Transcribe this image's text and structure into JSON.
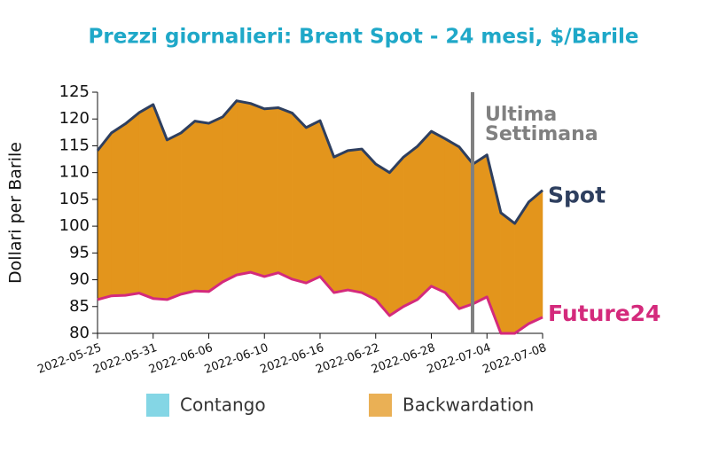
{
  "chart_data": {
    "type": "line",
    "title": "Prezzi giornalieri: Brent Spot - 24 mesi, $/Barile",
    "y_label": "Dollari per Barile",
    "categories": [
      "2022-05-25",
      null,
      null,
      null,
      "2022-05-31",
      null,
      null,
      null,
      "2022-06-06",
      null,
      null,
      null,
      "2022-06-10",
      null,
      null,
      null,
      "2022-06-16",
      null,
      null,
      null,
      "2022-06-22",
      null,
      null,
      null,
      "2022-06-28",
      null,
      null,
      null,
      "2022-07-04",
      null,
      null,
      null,
      "2022-07-08"
    ],
    "series": [
      {
        "name": "Spot",
        "color": "#2e3f5f",
        "values": [
          114.1,
          117.4,
          119.1,
          121.2,
          122.7,
          116.1,
          117.4,
          119.6,
          119.2,
          120.4,
          123.4,
          122.9,
          121.9,
          122.1,
          121.1,
          118.4,
          119.7,
          112.9,
          114.1,
          114.4,
          111.6,
          110.0,
          112.9,
          114.9,
          117.7,
          116.3,
          114.8,
          111.6,
          113.3,
          102.5,
          100.5,
          104.5,
          106.7
        ]
      },
      {
        "name": "Future24",
        "color": "#d42a7c",
        "values": [
          86.3,
          87.0,
          87.1,
          87.5,
          86.5,
          86.3,
          87.3,
          87.9,
          87.8,
          89.6,
          90.9,
          91.4,
          90.6,
          91.3,
          90.1,
          89.4,
          90.6,
          87.6,
          88.1,
          87.6,
          86.3,
          83.3,
          85.0,
          86.3,
          88.8,
          87.6,
          84.6,
          85.5,
          86.8,
          80.0,
          80.0,
          81.8,
          83.0
        ]
      }
    ],
    "fill_legend": [
      {
        "name": "Contango",
        "color": "#5bc8dc"
      },
      {
        "name": "Backwardation",
        "color": "#e3951c"
      }
    ],
    "annotation": [
      "Ultima",
      "Settimana"
    ],
    "ylim": [
      80,
      125
    ],
    "yticks": [
      80,
      85,
      90,
      95,
      100,
      105,
      110,
      115,
      120,
      125
    ]
  }
}
